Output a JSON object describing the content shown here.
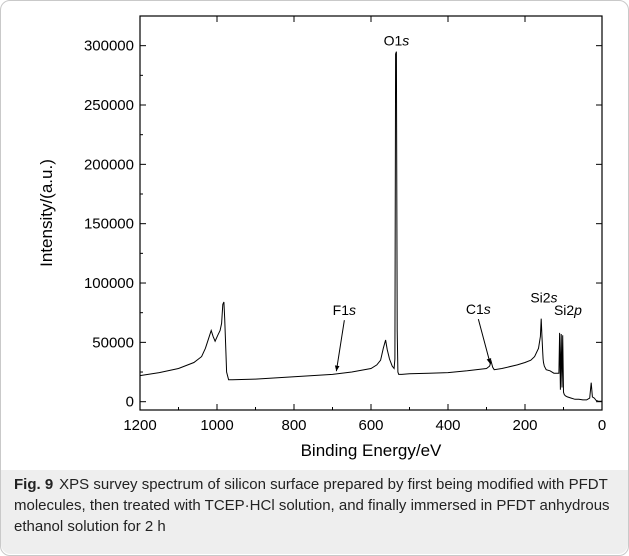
{
  "chart_data": {
    "type": "line",
    "xlabel": "Binding Energy/eV",
    "ylabel": "Intensity/(a.u.)",
    "xlim": [
      1200,
      0
    ],
    "ylim": [
      -7000,
      325000
    ],
    "x_reversed": true,
    "x_ticks": [
      1200,
      1000,
      800,
      600,
      400,
      200,
      0
    ],
    "y_ticks": [
      0,
      50000,
      100000,
      150000,
      200000,
      250000,
      300000
    ],
    "grid": false,
    "series": [
      {
        "x": [
          1200,
          1150,
          1100,
          1060,
          1040,
          1030,
          1022,
          1015,
          1010,
          1005,
          998,
          992,
          988,
          985,
          982,
          980,
          977,
          975,
          970,
          960,
          900,
          800,
          700,
          650,
          600,
          585,
          575,
          568,
          562,
          558,
          552,
          545,
          540,
          538,
          536,
          534,
          532,
          530,
          528,
          520,
          500,
          450,
          400,
          350,
          300,
          292,
          288,
          284,
          280,
          260,
          220,
          200,
          185,
          175,
          165,
          160,
          158,
          156,
          154,
          153,
          152,
          150,
          145,
          135,
          125,
          118,
          112,
          110,
          108,
          106,
          104,
          102,
          100,
          98,
          95,
          90,
          80,
          70,
          60,
          50,
          40,
          32,
          30,
          28,
          25,
          20,
          15,
          10,
          5,
          0
        ],
        "y": [
          22000,
          24500,
          28000,
          33000,
          38000,
          45000,
          53000,
          60000,
          55000,
          51000,
          56000,
          60000,
          66000,
          82000,
          84000,
          70000,
          42000,
          25000,
          18500,
          18500,
          19000,
          21000,
          23000,
          25000,
          28000,
          31000,
          35000,
          45000,
          52000,
          44000,
          36000,
          30000,
          28000,
          36000,
          293000,
          295000,
          60000,
          25000,
          23000,
          23000,
          23500,
          24000,
          24500,
          26000,
          28000,
          30000,
          34000,
          29000,
          27000,
          28000,
          31000,
          33000,
          35000,
          38000,
          45000,
          55000,
          70000,
          56000,
          42000,
          36000,
          33000,
          30000,
          27000,
          26000,
          24000,
          24000,
          24000,
          58000,
          10000,
          57000,
          12000,
          56000,
          8000,
          6000,
          5000,
          4000,
          3000,
          2000,
          2000,
          1500,
          1500,
          3000,
          10000,
          16000,
          4000,
          3000,
          1000,
          500,
          400,
          300
        ]
      }
    ],
    "annotations": [
      {
        "text": "F1",
        "italic_suffix": "s",
        "x": 690,
        "y": 24000
      },
      {
        "text": "O1",
        "italic_suffix": "s",
        "x": 534,
        "y": 295000
      },
      {
        "text": "C1",
        "italic_suffix": "s",
        "x": 290,
        "y": 30000
      },
      {
        "text": "Si2",
        "italic_suffix": "s",
        "x": 156,
        "y": 70000
      },
      {
        "text": "Si2",
        "italic_suffix": "p",
        "x": 104,
        "y": 58000
      }
    ]
  },
  "caption": {
    "figure_label": "Fig. 9",
    "text": "XPS survey spectrum of silicon surface prepared by first being modified with PFDT molecules, then treated with TCEP·HCl solution, and finally immersed in PFDT anhydrous ethanol solution for 2 h"
  }
}
